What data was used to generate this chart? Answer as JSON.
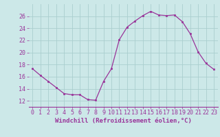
{
  "x": [
    0,
    1,
    2,
    3,
    4,
    5,
    6,
    7,
    8,
    9,
    10,
    11,
    12,
    13,
    14,
    15,
    16,
    17,
    18,
    19,
    20,
    21,
    22,
    23
  ],
  "y": [
    17.3,
    16.2,
    15.2,
    14.2,
    13.2,
    13.0,
    13.0,
    12.2,
    12.1,
    15.2,
    17.3,
    22.1,
    24.2,
    25.2,
    26.1,
    26.8,
    26.2,
    26.1,
    26.2,
    25.1,
    23.1,
    20.1,
    18.2,
    17.2
  ],
  "line_color": "#993399",
  "marker": "s",
  "marker_size": 2,
  "bg_color": "#cce8e8",
  "grid_color": "#b0d8d8",
  "xlabel": "Windchill (Refroidissement éolien,°C)",
  "xlim": [
    -0.5,
    23.5
  ],
  "ylim": [
    11,
    28
  ],
  "yticks": [
    12,
    14,
    16,
    18,
    20,
    22,
    24,
    26
  ],
  "xticks": [
    0,
    1,
    2,
    3,
    4,
    5,
    6,
    7,
    8,
    9,
    10,
    11,
    12,
    13,
    14,
    15,
    16,
    17,
    18,
    19,
    20,
    21,
    22,
    23
  ],
  "xlabel_fontsize": 6.5,
  "tick_fontsize": 6,
  "label_color": "#993399"
}
